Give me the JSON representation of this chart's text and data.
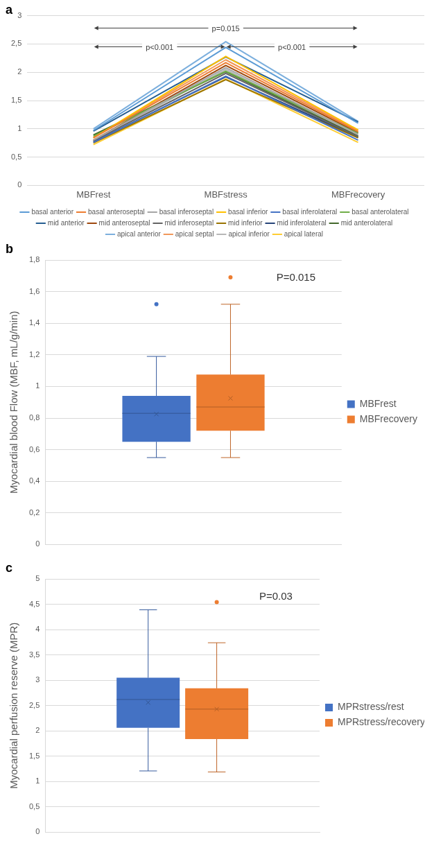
{
  "chart_data": [
    {
      "type": "line",
      "title": "a",
      "categories": [
        "MBFrest",
        "MBFstress",
        "MBFrecovery"
      ],
      "ylim": [
        0,
        3
      ],
      "yticks": [
        0,
        {
          "value": 0.5,
          "label": "0,5"
        },
        1,
        {
          "value": 1.5,
          "label": "1,5"
        },
        2,
        {
          "value": 2.5,
          "label": "2,5"
        },
        3
      ],
      "grid": "y",
      "legend": "bottom",
      "marker": "none",
      "annotations": [
        "p=0.015",
        "p<0.001",
        "p<0.001"
      ],
      "series": [
        {
          "name": "basal anterior",
          "color": "#5b9bd5",
          "values": [
            0.97,
            2.44,
            1.1
          ]
        },
        {
          "name": "basal anteroseptal",
          "color": "#ed7d31",
          "values": [
            0.84,
            2.17,
            0.95
          ]
        },
        {
          "name": "basal inferoseptal",
          "color": "#a5a5a5",
          "values": [
            0.8,
            2.08,
            0.9
          ]
        },
        {
          "name": "basal inferior",
          "color": "#ffc000",
          "values": [
            0.84,
            2.28,
            0.98
          ]
        },
        {
          "name": "basal inferolateral",
          "color": "#4472c4",
          "values": [
            0.76,
            1.93,
            0.8
          ]
        },
        {
          "name": "basal anterolateral",
          "color": "#70ad47",
          "values": [
            0.87,
            2.02,
            0.92
          ]
        },
        {
          "name": "mid anterior",
          "color": "#255e91",
          "values": [
            0.96,
            2.27,
            1.12
          ]
        },
        {
          "name": "mid anteroseptal",
          "color": "#9e480e",
          "values": [
            0.8,
            2.12,
            0.93
          ]
        },
        {
          "name": "mid inferoseptal",
          "color": "#636363",
          "values": [
            0.79,
            1.98,
            0.86
          ]
        },
        {
          "name": "mid inferior",
          "color": "#997300",
          "values": [
            0.75,
            1.87,
            0.84
          ]
        },
        {
          "name": "mid inferolateral",
          "color": "#264478",
          "values": [
            0.77,
            1.92,
            0.85
          ]
        },
        {
          "name": "mid anterolateral",
          "color": "#43682b",
          "values": [
            0.89,
            2.01,
            0.87
          ]
        },
        {
          "name": "apical anterior",
          "color": "#7cafdd",
          "values": [
            1.0,
            2.54,
            1.13
          ]
        },
        {
          "name": "apical septal",
          "color": "#f1975a",
          "values": [
            0.85,
            2.22,
            0.97
          ]
        },
        {
          "name": "apical inferior",
          "color": "#b7b7b7",
          "values": [
            0.78,
            2.05,
            0.88
          ]
        },
        {
          "name": "apical lateral",
          "color": "#ffcd33",
          "values": [
            0.72,
            1.88,
            0.76
          ]
        }
      ]
    },
    {
      "type": "box",
      "title": "b",
      "ylabel": "Myocardial blood Flow (MBF, mL/g/min)",
      "categories": [
        null
      ],
      "ylim": [
        0,
        1.8
      ],
      "yticks": [
        0,
        {
          "value": 0.2,
          "label": "0,2"
        },
        {
          "value": 0.4,
          "label": "0,4"
        },
        {
          "value": 0.6,
          "label": "0,6"
        },
        {
          "value": 0.8,
          "label": "0,8"
        },
        1,
        {
          "value": 1.2,
          "label": "1,2"
        },
        {
          "value": 1.4,
          "label": "1,4"
        },
        {
          "value": 1.6,
          "label": "1,6"
        },
        {
          "value": 1.8,
          "label": "1,8"
        }
      ],
      "grid": "y",
      "legend": "right",
      "annotations": [
        "P=0.015"
      ],
      "series": [
        {
          "name": "MBFrest",
          "color": "#4472c4",
          "boxes": [
            {
              "low": 0.55,
              "q1": 0.65,
              "median": 0.83,
              "q3": 0.94,
              "high": 1.19,
              "mean": 0.825,
              "outliers": [
                1.52
              ]
            }
          ]
        },
        {
          "name": "MBFrecovery",
          "color": "#ed7d31",
          "boxes": [
            {
              "low": 0.55,
              "q1": 0.72,
              "median": 0.87,
              "q3": 1.075,
              "high": 1.52,
              "mean": 0.925,
              "outliers": [
                1.69
              ]
            }
          ]
        }
      ]
    },
    {
      "type": "box",
      "title": "c",
      "ylabel": "Myocardial perfusion reserve (MPR)",
      "categories": [
        null
      ],
      "ylim": [
        0,
        5
      ],
      "yticks": [
        0,
        {
          "value": 0.5,
          "label": "0,5"
        },
        1,
        {
          "value": 1.5,
          "label": "1,5"
        },
        2,
        {
          "value": 2.5,
          "label": "2,5"
        },
        3,
        {
          "value": 3.5,
          "label": "3,5"
        },
        4,
        {
          "value": 4.5,
          "label": "4,5"
        },
        5
      ],
      "grid": "y",
      "legend": "right",
      "annotations": [
        "P=0.03"
      ],
      "series": [
        {
          "name": "MPRstress/rest",
          "color": "#4472c4",
          "boxes": [
            {
              "low": 1.21,
              "q1": 2.06,
              "median": 2.62,
              "q3": 3.05,
              "high": 4.39,
              "mean": 2.56
            }
          ]
        },
        {
          "name": "MPRstress/recovery",
          "color": "#ed7d31",
          "boxes": [
            {
              "low": 1.19,
              "q1": 1.84,
              "median": 2.43,
              "q3": 2.84,
              "high": 3.74,
              "mean": 2.43,
              "outliers": [
                4.54
              ]
            }
          ]
        }
      ]
    }
  ]
}
